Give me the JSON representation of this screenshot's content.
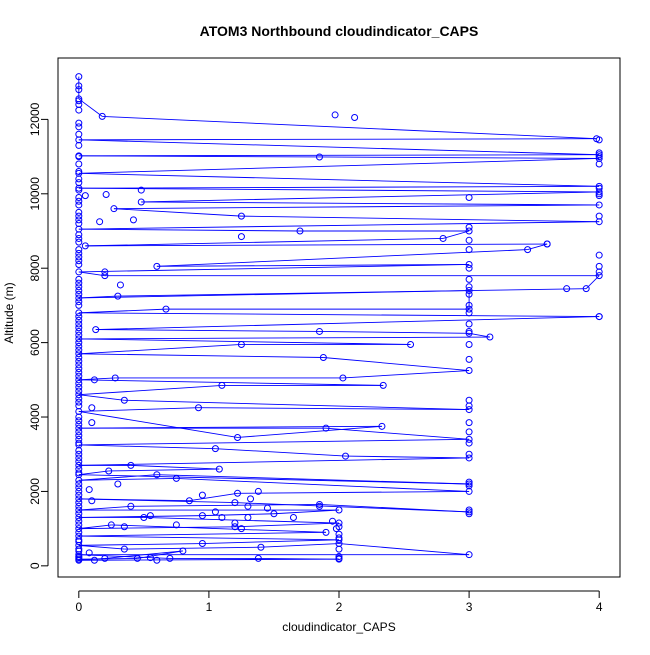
{
  "chart_data": {
    "type": "scatter",
    "title": "ATOM3 Northbound cloudindicator_CAPS",
    "xlabel": "cloudindicator_CAPS",
    "ylabel": "Altitude (m)",
    "xlim": [
      -0.16,
      4.16
    ],
    "ylim": [
      -300,
      13650
    ],
    "x_ticks": [
      0,
      1,
      2,
      3,
      4
    ],
    "y_ticks": [
      0,
      2000,
      4000,
      6000,
      8000,
      10000,
      12000
    ],
    "grid": false,
    "marker": "open-circle",
    "line_color": "#0000ff",
    "series": [
      {
        "points": [
          [
            0,
            13150
          ],
          [
            0,
            12900
          ],
          [
            0,
            12550
          ],
          [
            0.18,
            12080
          ],
          [
            3.98,
            11480
          ],
          [
            0,
            11450
          ],
          [
            4,
            11050
          ],
          [
            0,
            11020
          ],
          [
            1.85,
            10990
          ],
          [
            4,
            10950
          ],
          [
            0,
            10550
          ],
          [
            4,
            10200
          ],
          [
            0,
            10150
          ],
          [
            4,
            10050
          ],
          [
            0.48,
            9780
          ],
          [
            4,
            9700
          ],
          [
            0.27,
            9600
          ],
          [
            1.25,
            9400
          ],
          [
            4,
            9250
          ],
          [
            0,
            9050
          ],
          [
            1.7,
            9000
          ],
          [
            3,
            9000
          ],
          [
            2.8,
            8800
          ],
          [
            0.05,
            8600
          ],
          [
            3.6,
            8650
          ],
          [
            3.45,
            8500
          ],
          [
            0.6,
            8050
          ],
          [
            3,
            8100
          ],
          [
            0,
            7900
          ],
          [
            0.2,
            7800
          ],
          [
            4,
            7800
          ],
          [
            3.9,
            7450
          ],
          [
            0.3,
            7250
          ],
          [
            0,
            7200
          ],
          [
            3,
            7400
          ],
          [
            3,
            6900
          ],
          [
            0.67,
            6900
          ],
          [
            0,
            6800
          ],
          [
            4,
            6700
          ],
          [
            0.13,
            6350
          ],
          [
            1.85,
            6300
          ],
          [
            3,
            6250
          ],
          [
            3.16,
            6150
          ],
          [
            0,
            6100
          ],
          [
            2.55,
            5950
          ],
          [
            1.25,
            5950
          ],
          [
            0,
            5700
          ],
          [
            1.88,
            5600
          ],
          [
            3,
            5250
          ],
          [
            2.03,
            5050
          ],
          [
            0.28,
            5050
          ],
          [
            0,
            5000
          ],
          [
            2.34,
            4850
          ],
          [
            1.1,
            4850
          ],
          [
            0,
            4600
          ],
          [
            0.35,
            4450
          ],
          [
            3,
            4200
          ],
          [
            0.92,
            4250
          ],
          [
            0,
            4150
          ],
          [
            1.22,
            3450
          ],
          [
            2.33,
            3750
          ],
          [
            0,
            3700
          ],
          [
            1.9,
            3700
          ],
          [
            3,
            3400
          ],
          [
            0,
            3250
          ],
          [
            1.05,
            3150
          ],
          [
            2.05,
            2950
          ],
          [
            3,
            2900
          ],
          [
            0,
            2700
          ],
          [
            0.4,
            2700
          ],
          [
            1.08,
            2600
          ],
          [
            0.23,
            2550
          ],
          [
            0,
            2450
          ],
          [
            3,
            2200
          ],
          [
            0.6,
            2450
          ],
          [
            0,
            2300
          ],
          [
            0.75,
            2350
          ],
          [
            3,
            2000
          ],
          [
            1.22,
            1950
          ],
          [
            0.85,
            1750
          ],
          [
            0,
            1800
          ],
          [
            1.2,
            1700
          ],
          [
            3,
            1450
          ],
          [
            1.85,
            1650
          ],
          [
            0.4,
            1600
          ],
          [
            0,
            1500
          ],
          [
            2,
            1500
          ],
          [
            1.5,
            1400
          ],
          [
            0.95,
            1350
          ],
          [
            0,
            1300
          ],
          [
            0.5,
            1300
          ],
          [
            2,
            1150
          ],
          [
            1.2,
            1050
          ],
          [
            0,
            1000
          ],
          [
            0.25,
            1100
          ],
          [
            1.9,
            900
          ],
          [
            0,
            800
          ],
          [
            2,
            700
          ],
          [
            0.95,
            600
          ],
          [
            0,
            550
          ],
          [
            0.35,
            450
          ],
          [
            1.4,
            500
          ],
          [
            2,
            600
          ],
          [
            3,
            300
          ],
          [
            0,
            300
          ],
          [
            0.7,
            200
          ],
          [
            1.38,
            200
          ],
          [
            2,
            180
          ],
          [
            0,
            150
          ],
          [
            0.2,
            200
          ],
          [
            0.8,
            400
          ],
          [
            0.45,
            200
          ],
          [
            0,
            180
          ]
        ],
        "extra_points": [
          [
            0,
            12800
          ],
          [
            0,
            12500
          ],
          [
            0,
            12400
          ],
          [
            0,
            12250
          ],
          [
            0,
            11900
          ],
          [
            0,
            11800
          ],
          [
            0,
            11600
          ],
          [
            0,
            11300
          ],
          [
            0,
            11000
          ],
          [
            0,
            10800
          ],
          [
            0,
            10600
          ],
          [
            0,
            10400
          ],
          [
            0,
            10300
          ],
          [
            0,
            10100
          ],
          [
            0,
            9900
          ],
          [
            0,
            9800
          ],
          [
            0,
            9700
          ],
          [
            0,
            9500
          ],
          [
            0,
            9400
          ],
          [
            0,
            9300
          ],
          [
            0,
            9200
          ],
          [
            0,
            8900
          ],
          [
            0,
            8800
          ],
          [
            0,
            8700
          ],
          [
            0,
            8500
          ],
          [
            0,
            8400
          ],
          [
            0,
            8300
          ],
          [
            0,
            8200
          ],
          [
            0,
            8100
          ],
          [
            0,
            7700
          ],
          [
            0,
            7600
          ],
          [
            0,
            7500
          ],
          [
            0,
            7400
          ],
          [
            0,
            7300
          ],
          [
            0,
            7100
          ],
          [
            0,
            7000
          ],
          [
            0,
            6700
          ],
          [
            0,
            6600
          ],
          [
            0,
            6500
          ],
          [
            0,
            6400
          ],
          [
            0,
            6300
          ],
          [
            0,
            6200
          ],
          [
            0,
            6000
          ],
          [
            0,
            5900
          ],
          [
            0,
            5800
          ],
          [
            0,
            5600
          ],
          [
            0,
            5500
          ],
          [
            0,
            5400
          ],
          [
            0,
            5300
          ],
          [
            0,
            5200
          ],
          [
            0,
            5100
          ],
          [
            0,
            4900
          ],
          [
            0,
            4800
          ],
          [
            0,
            4700
          ],
          [
            0,
            4500
          ],
          [
            0,
            4400
          ],
          [
            0,
            4300
          ],
          [
            0,
            4000
          ],
          [
            0,
            3900
          ],
          [
            0,
            3800
          ],
          [
            0,
            3600
          ],
          [
            0,
            3500
          ],
          [
            0,
            3400
          ],
          [
            0,
            3300
          ],
          [
            0,
            3100
          ],
          [
            0,
            3000
          ],
          [
            0,
            2900
          ],
          [
            0,
            2800
          ],
          [
            0,
            2600
          ],
          [
            0,
            2500
          ],
          [
            0,
            2200
          ],
          [
            0,
            2100
          ],
          [
            0,
            2000
          ],
          [
            0,
            1900
          ],
          [
            0,
            1700
          ],
          [
            0,
            1600
          ],
          [
            0,
            1400
          ],
          [
            0,
            1200
          ],
          [
            0,
            1100
          ],
          [
            0,
            900
          ],
          [
            0,
            700
          ],
          [
            0,
            650
          ],
          [
            0,
            450
          ],
          [
            0,
            400
          ],
          [
            0,
            250
          ],
          [
            0,
            220
          ],
          [
            0.05,
            9950
          ],
          [
            0.08,
            2050
          ],
          [
            0.1,
            1750
          ],
          [
            0.12,
            150
          ],
          [
            0.08,
            350
          ],
          [
            2.12,
            12050
          ],
          [
            1.97,
            12120
          ],
          [
            0.48,
            10100
          ],
          [
            0.42,
            9300
          ],
          [
            0.21,
            9980
          ],
          [
            0.16,
            9250
          ],
          [
            1.25,
            8850
          ],
          [
            0.2,
            7900
          ],
          [
            0.32,
            7550
          ],
          [
            0.12,
            5000
          ],
          [
            0.1,
            4250
          ],
          [
            0.1,
            3850
          ],
          [
            0.3,
            2200
          ],
          [
            0.55,
            1350
          ],
          [
            0.35,
            1050
          ],
          [
            0.6,
            150
          ],
          [
            0.55,
            220
          ],
          [
            0.75,
            1100
          ],
          [
            0.95,
            1900
          ],
          [
            1.05,
            1450
          ],
          [
            1.1,
            1300
          ],
          [
            1.2,
            1150
          ],
          [
            1.25,
            1000
          ],
          [
            1.3,
            1300
          ],
          [
            1.3,
            1600
          ],
          [
            1.32,
            1800
          ],
          [
            1.38,
            2000
          ],
          [
            1.45,
            1550
          ],
          [
            1.65,
            1300
          ],
          [
            1.85,
            1600
          ],
          [
            1.95,
            1200
          ],
          [
            1.98,
            1000
          ],
          [
            2,
            1050
          ],
          [
            2,
            850
          ],
          [
            2,
            750
          ],
          [
            2,
            450
          ],
          [
            2,
            250
          ],
          [
            2,
            200
          ],
          [
            3,
            9900
          ],
          [
            3,
            9100
          ],
          [
            3,
            8750
          ],
          [
            3,
            8500
          ],
          [
            3,
            8000
          ],
          [
            3,
            7700
          ],
          [
            3,
            7500
          ],
          [
            3,
            7300
          ],
          [
            3,
            7000
          ],
          [
            3,
            6800
          ],
          [
            3,
            6500
          ],
          [
            3,
            6300
          ],
          [
            3,
            5950
          ],
          [
            3,
            5550
          ],
          [
            3,
            4450
          ],
          [
            3,
            4300
          ],
          [
            3,
            3850
          ],
          [
            3,
            3600
          ],
          [
            3,
            3300
          ],
          [
            3,
            3000
          ],
          [
            3,
            2250
          ],
          [
            3,
            2150
          ],
          [
            3,
            1500
          ],
          [
            3,
            1400
          ],
          [
            3.6,
            8650
          ],
          [
            3.75,
            7450
          ],
          [
            4,
            11450
          ],
          [
            4,
            11100
          ],
          [
            4,
            11000
          ],
          [
            4,
            10800
          ],
          [
            4,
            10150
          ],
          [
            4,
            10000
          ],
          [
            4,
            9950
          ],
          [
            4,
            9400
          ],
          [
            4,
            8350
          ],
          [
            4,
            8050
          ],
          [
            4,
            7900
          ],
          [
            4,
            6700
          ]
        ]
      }
    ]
  }
}
